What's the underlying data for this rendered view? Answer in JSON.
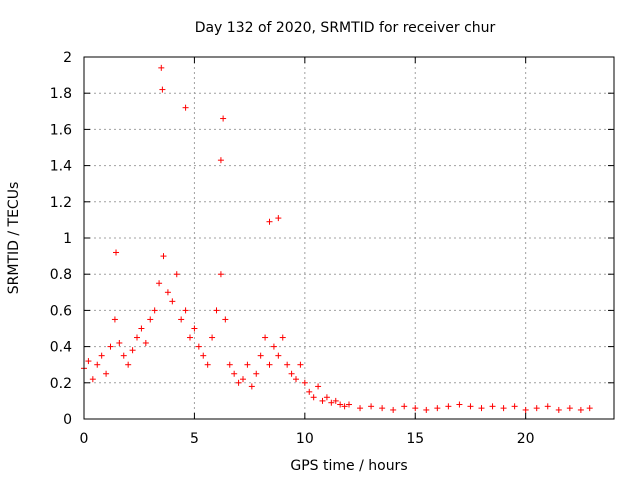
{
  "chart_data": {
    "type": "scatter",
    "title": "Day 132 of 2020, SRMTID for receiver chur",
    "xlabel": "GPS time / hours",
    "ylabel": "SRMTID / TECUs",
    "xlim": [
      0,
      24
    ],
    "ylim": [
      0,
      2
    ],
    "xticks": [
      0,
      5,
      10,
      15,
      20
    ],
    "xtick_labels": [
      "0",
      "5",
      "10",
      "15",
      "20"
    ],
    "yticks": [
      0,
      0.2,
      0.4,
      0.6,
      0.8,
      1,
      1.2,
      1.4,
      1.6,
      1.8,
      2
    ],
    "ytick_labels": [
      "0",
      "0.2",
      "0.4",
      "0.6",
      "0.8",
      "1",
      "1.2",
      "1.4",
      "1.6",
      "1.8",
      "2"
    ],
    "grid": true,
    "marker": "+",
    "color": "#ff0000",
    "series": [
      {
        "name": "SRMTID",
        "x": [
          0.0,
          0.2,
          0.4,
          0.6,
          0.8,
          1.0,
          1.2,
          1.4,
          1.6,
          1.8,
          2.0,
          2.2,
          2.4,
          2.6,
          2.8,
          3.0,
          3.2,
          3.4,
          3.6,
          3.8,
          4.0,
          4.2,
          4.4,
          4.6,
          4.8,
          5.0,
          5.2,
          5.4,
          5.6,
          5.8,
          6.0,
          6.2,
          6.4,
          6.6,
          6.8,
          7.0,
          7.2,
          7.4,
          7.6,
          7.8,
          8.0,
          8.2,
          8.4,
          8.6,
          8.8,
          9.0,
          9.2,
          9.4,
          9.6,
          9.8,
          10.0,
          10.2,
          10.4,
          10.6,
          10.8,
          11.0,
          11.2,
          11.4,
          11.6,
          11.8,
          12.0,
          12.5,
          13.0,
          13.5,
          14.0,
          14.5,
          15.0,
          15.5,
          16.0,
          16.5,
          17.0,
          17.5,
          18.0,
          18.5,
          19.0,
          19.5,
          20.0,
          20.5,
          21.0,
          21.5,
          22.0,
          22.5,
          22.9,
          3.5,
          3.55,
          4.6,
          6.3,
          8.4,
          8.8,
          1.45,
          6.2
        ],
        "y": [
          0.28,
          0.32,
          0.22,
          0.3,
          0.35,
          0.25,
          0.4,
          0.55,
          0.42,
          0.35,
          0.3,
          0.38,
          0.45,
          0.5,
          0.42,
          0.55,
          0.6,
          0.75,
          0.9,
          0.7,
          0.65,
          0.8,
          0.55,
          0.6,
          0.45,
          0.5,
          0.4,
          0.35,
          0.3,
          0.45,
          0.6,
          0.8,
          0.55,
          0.3,
          0.25,
          0.2,
          0.22,
          0.3,
          0.18,
          0.25,
          0.35,
          0.45,
          0.3,
          0.4,
          0.35,
          0.45,
          0.3,
          0.25,
          0.22,
          0.3,
          0.2,
          0.15,
          0.12,
          0.18,
          0.1,
          0.12,
          0.09,
          0.1,
          0.08,
          0.07,
          0.08,
          0.06,
          0.07,
          0.06,
          0.05,
          0.07,
          0.06,
          0.05,
          0.06,
          0.07,
          0.08,
          0.07,
          0.06,
          0.07,
          0.06,
          0.07,
          0.05,
          0.06,
          0.07,
          0.05,
          0.06,
          0.05,
          0.06,
          1.94,
          1.82,
          1.72,
          1.66,
          1.09,
          1.11,
          0.92,
          1.43
        ]
      }
    ]
  }
}
